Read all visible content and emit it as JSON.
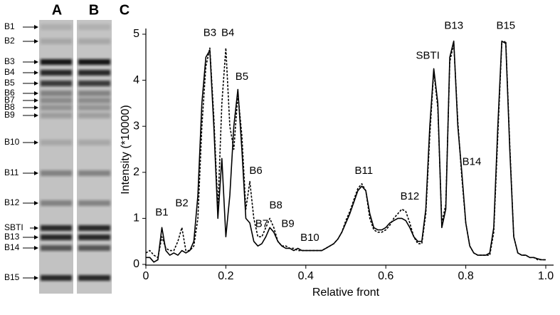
{
  "gel": {
    "lanes": [
      "A",
      "B"
    ],
    "bands": [
      "B1",
      "B2",
      "B3",
      "B4",
      "B5",
      "B6",
      "B7",
      "B8",
      "B9",
      "B10",
      "B11",
      "B12",
      "SBTI",
      "B13",
      "B14",
      "B15"
    ]
  },
  "chart_data": {
    "type": "line",
    "panel": "C",
    "xlabel": "Relative front",
    "ylabel": "Intensity (*10000)",
    "xlim": [
      0,
      1
    ],
    "xticks": [
      0,
      0.2,
      0.4,
      0.6,
      0.8,
      {
        "value": 1,
        "label": "1.0"
      }
    ],
    "ylim": [
      0,
      5
    ],
    "yticks": [
      0,
      1,
      2,
      3,
      4,
      5
    ],
    "x": [
      0,
      0.01,
      0.02,
      0.03,
      0.04,
      0.05,
      0.06,
      0.07,
      0.08,
      0.09,
      0.1,
      0.11,
      0.12,
      0.13,
      0.14,
      0.15,
      0.16,
      0.17,
      0.18,
      0.19,
      0.2,
      0.21,
      0.22,
      0.23,
      0.24,
      0.25,
      0.26,
      0.27,
      0.28,
      0.29,
      0.3,
      0.31,
      0.32,
      0.33,
      0.34,
      0.35,
      0.36,
      0.37,
      0.38,
      0.39,
      0.4,
      0.41,
      0.42,
      0.43,
      0.44,
      0.45,
      0.46,
      0.47,
      0.48,
      0.49,
      0.5,
      0.51,
      0.52,
      0.53,
      0.54,
      0.55,
      0.56,
      0.57,
      0.58,
      0.59,
      0.6,
      0.61,
      0.62,
      0.63,
      0.64,
      0.65,
      0.66,
      0.67,
      0.68,
      0.69,
      0.7,
      0.71,
      0.72,
      0.73,
      0.74,
      0.75,
      0.76,
      0.77,
      0.78,
      0.79,
      0.8,
      0.81,
      0.82,
      0.83,
      0.84,
      0.85,
      0.86,
      0.87,
      0.88,
      0.89,
      0.9,
      0.91,
      0.92,
      0.93,
      0.94,
      0.95,
      0.96,
      0.97,
      0.98,
      0.99,
      1
    ],
    "series": [
      {
        "color": "#000000",
        "dash": false,
        "values": [
          0.15,
          0.15,
          0.05,
          0.1,
          0.8,
          0.3,
          0.2,
          0.25,
          0.2,
          0.3,
          0.25,
          0.3,
          0.5,
          1.5,
          3.5,
          4.5,
          4.65,
          3.0,
          1.0,
          2.3,
          0.6,
          1.5,
          3.0,
          3.8,
          2.5,
          1.0,
          0.9,
          0.5,
          0.4,
          0.45,
          0.6,
          0.8,
          0.7,
          0.5,
          0.4,
          0.35,
          0.35,
          0.3,
          0.35,
          0.3,
          0.3,
          0.3,
          0.3,
          0.3,
          0.3,
          0.35,
          0.4,
          0.45,
          0.55,
          0.7,
          0.9,
          1.1,
          1.35,
          1.6,
          1.7,
          1.6,
          1.1,
          0.8,
          0.75,
          0.75,
          0.8,
          0.9,
          0.95,
          1.0,
          1.0,
          0.95,
          0.8,
          0.6,
          0.5,
          0.5,
          1.2,
          3.0,
          4.25,
          3.5,
          0.8,
          1.2,
          4.5,
          4.85,
          3.0,
          2.0,
          0.9,
          0.4,
          0.25,
          0.2,
          0.2,
          0.2,
          0.25,
          0.8,
          3.0,
          4.85,
          4.8,
          2.5,
          0.6,
          0.25,
          0.2,
          0.2,
          0.15,
          0.15,
          0.12,
          0.1,
          0.1
        ]
      },
      {
        "color": "#000000",
        "dash": true,
        "values": [
          0.25,
          0.3,
          0.2,
          0.15,
          0.6,
          0.35,
          0.3,
          0.3,
          0.5,
          0.8,
          0.3,
          0.3,
          0.4,
          1.0,
          3.0,
          4.3,
          4.7,
          3.2,
          1.2,
          3.5,
          4.7,
          3.0,
          2.5,
          3.7,
          2.8,
          1.2,
          1.8,
          1.0,
          0.6,
          0.6,
          0.8,
          1.0,
          0.8,
          0.5,
          0.4,
          0.4,
          0.35,
          0.35,
          0.3,
          0.3,
          0.3,
          0.3,
          0.3,
          0.3,
          0.3,
          0.35,
          0.4,
          0.45,
          0.55,
          0.7,
          0.95,
          1.15,
          1.4,
          1.65,
          1.75,
          1.6,
          1.0,
          0.75,
          0.7,
          0.7,
          0.75,
          0.85,
          1.0,
          1.1,
          1.2,
          1.15,
          0.9,
          0.6,
          0.45,
          0.45,
          1.1,
          2.8,
          4.2,
          3.4,
          0.9,
          1.3,
          4.4,
          4.8,
          3.1,
          1.9,
          0.9,
          0.4,
          0.25,
          0.2,
          0.2,
          0.2,
          0.2,
          0.7,
          2.8,
          4.8,
          4.85,
          2.6,
          0.6,
          0.25,
          0.2,
          0.2,
          0.15,
          0.15,
          0.1,
          0.1,
          0.1
        ]
      }
    ],
    "annotations": [
      {
        "text": "B1",
        "x": 0.04,
        "y": 1.0
      },
      {
        "text": "B2",
        "x": 0.09,
        "y": 1.2
      },
      {
        "text": "B3",
        "x": 0.16,
        "y": 4.9
      },
      {
        "text": "B4",
        "x": 0.205,
        "y": 4.9
      },
      {
        "text": "B5",
        "x": 0.24,
        "y": 3.95
      },
      {
        "text": "B6",
        "x": 0.275,
        "y": 1.9
      },
      {
        "text": "B7",
        "x": 0.29,
        "y": 0.75
      },
      {
        "text": "B8",
        "x": 0.325,
        "y": 1.15
      },
      {
        "text": "B9",
        "x": 0.355,
        "y": 0.75
      },
      {
        "text": "B10",
        "x": 0.41,
        "y": 0.45
      },
      {
        "text": "B11",
        "x": 0.545,
        "y": 1.9
      },
      {
        "text": "B12",
        "x": 0.66,
        "y": 1.35
      },
      {
        "text": "SBTI",
        "x": 0.705,
        "y": 4.4
      },
      {
        "text": "B13",
        "x": 0.77,
        "y": 5.05
      },
      {
        "text": "B14",
        "x": 0.815,
        "y": 2.1
      },
      {
        "text": "B15",
        "x": 0.9,
        "y": 5.05
      }
    ]
  }
}
